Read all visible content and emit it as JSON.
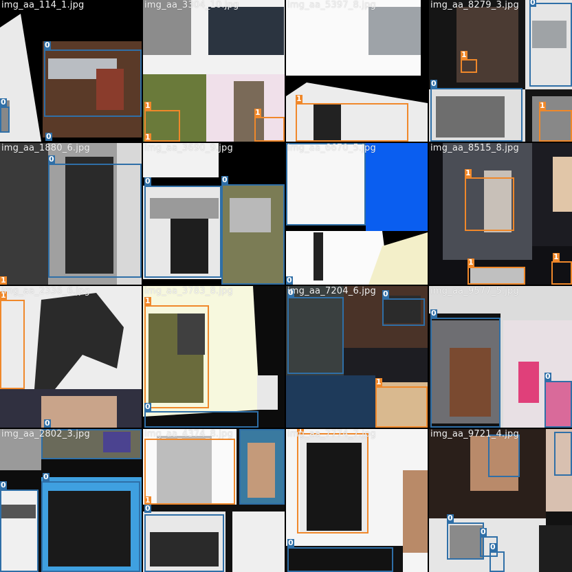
{
  "colors": {
    "class0": "#2f6fa7",
    "class1": "#f0882a",
    "tile_gap": "#ffffff"
  },
  "tiles": [
    {
      "id": "t00",
      "title": "img_aa_114_1.jpg",
      "bg": "#1a1a1a",
      "labels": [
        "0",
        "0",
        "0"
      ]
    },
    {
      "id": "t01",
      "title": "img_aa_3304_10.jpg",
      "bg": "#e6e6e6",
      "labels": [
        "1",
        "1",
        "1"
      ]
    },
    {
      "id": "t02",
      "title": "img_aa_5397_8.jpg",
      "bg": "#111111",
      "labels": [
        "1"
      ]
    },
    {
      "id": "t03",
      "title": "img_aa_8279_3.jpg",
      "bg": "#222222",
      "labels": [
        "1",
        "0",
        "1",
        "0"
      ]
    },
    {
      "id": "t10",
      "title": "img_aa_1880_6.jpg",
      "bg": "#3a3a3a",
      "labels": [
        "0",
        "1"
      ]
    },
    {
      "id": "t11",
      "title": "img_aa_3690_9.jpg",
      "bg": "#0a0a0a",
      "labels": [
        "0",
        "0"
      ]
    },
    {
      "id": "t12",
      "title": "img_aa_6670_5.jpg",
      "bg": "#000000",
      "labels": [
        "0"
      ]
    },
    {
      "id": "t13",
      "title": "img_aa_8515_8.jpg",
      "bg": "#1d1d22",
      "labels": [
        "1",
        "1",
        "1"
      ]
    },
    {
      "id": "t20",
      "title": "img_aa_2336_6.jpg",
      "bg": "#e9e9e9",
      "labels": [
        "1",
        "0"
      ]
    },
    {
      "id": "t21",
      "title": "img_aa_3783_8.jpg",
      "bg": "#0c0c0c",
      "labels": [
        "1",
        "0"
      ]
    },
    {
      "id": "t22",
      "title": "img_aa_7204_6.jpg",
      "bg": "#222225",
      "labels": [
        "0",
        "0",
        "1"
      ]
    },
    {
      "id": "t23",
      "title": "img_aa_9577_5.jpg",
      "bg": "#d9d9d9",
      "labels": [
        "0",
        "0"
      ]
    },
    {
      "id": "t30",
      "title": "img_aa_2802_3.jpg",
      "bg": "#0f0f0f",
      "labels": [
        "0",
        "0"
      ]
    },
    {
      "id": "t31",
      "title": "img_aa_4374_8.jpg",
      "bg": "#121212",
      "labels": [
        "1",
        "0"
      ]
    },
    {
      "id": "t32",
      "title": "img_aa_7774_7.jpg",
      "bg": "#f4f4f4",
      "labels": [
        "1",
        "0"
      ]
    },
    {
      "id": "t33",
      "title": "img_aa_9721_4.jpg",
      "bg": "#121212",
      "labels": [
        "0",
        "0",
        "0"
      ]
    }
  ]
}
